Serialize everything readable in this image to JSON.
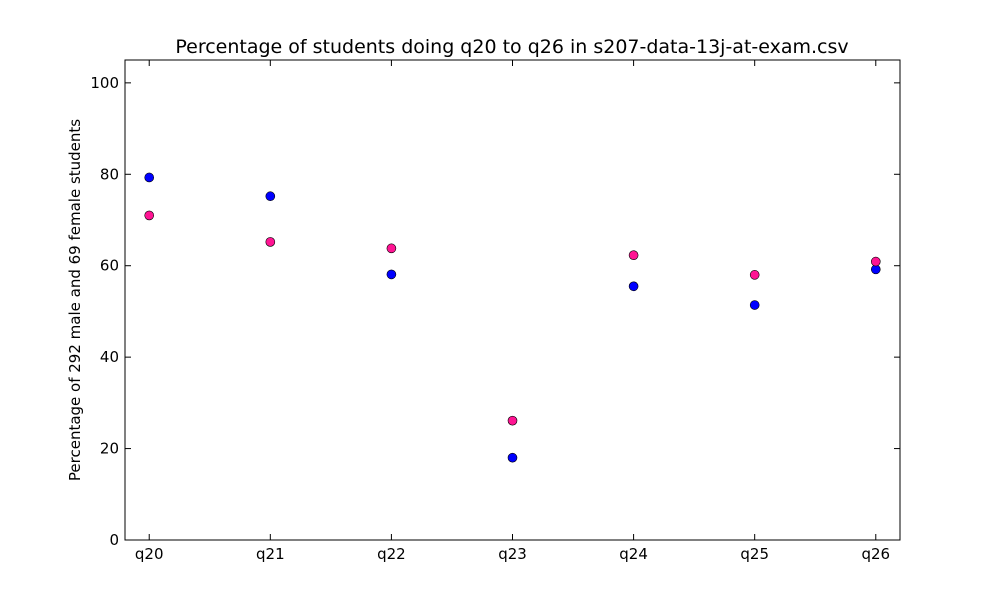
{
  "chart_data": {
    "type": "scatter",
    "title": "Percentage of students doing q20 to q26 in s207-data-13j-at-exam.csv",
    "xlabel": "",
    "ylabel": "Percentage of 292 male and 69 female students",
    "categories": [
      "q20",
      "q21",
      "q22",
      "q23",
      "q24",
      "q25",
      "q26"
    ],
    "ylim": [
      0,
      105
    ],
    "yticks": [
      0,
      20,
      40,
      60,
      80,
      100
    ],
    "grid": false,
    "legend": "none",
    "series": [
      {
        "color": "#0000ff",
        "values": [
          79.3,
          75.2,
          58.1,
          18.0,
          55.5,
          51.4,
          59.2
        ]
      },
      {
        "color": "#ff1493",
        "values": [
          71.0,
          65.2,
          63.8,
          26.1,
          62.3,
          58.0,
          60.9
        ]
      }
    ]
  }
}
